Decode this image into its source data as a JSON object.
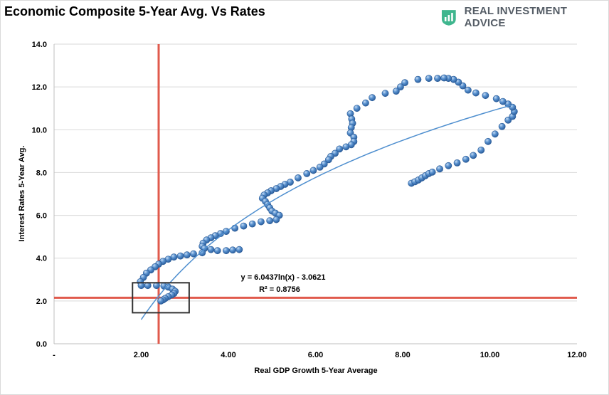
{
  "header": {
    "title": "Economic Composite 5-Year Avg. Vs Rates",
    "brand_name": "REAL INVESTMENT ADVICE",
    "brand_icon": "bar-chart-shield-icon",
    "brand_color": "#3fb68e"
  },
  "chart_data": {
    "type": "scatter",
    "xlabel": "Real GDP Growth 5-Year Average",
    "ylabel": "Interest Rates 5-Year Avg.",
    "xlim": [
      0,
      12
    ],
    "ylim": [
      0,
      14
    ],
    "x_tick_labels": [
      "-",
      "2.00",
      "4.00",
      "6.00",
      "8.00",
      "10.00",
      "12.00"
    ],
    "y_tick_labels": [
      "0.0",
      "2.0",
      "4.0",
      "6.0",
      "8.0",
      "10.0",
      "12.0",
      "14.0"
    ],
    "grid": "horizontal",
    "marker_color": "#4a86c8",
    "trendline": {
      "equation": "y = 6.0437ln(x) - 3.0621",
      "r_squared": "R² = 0.8756",
      "a": 6.0437,
      "b": -3.0621,
      "x_range": [
        2.0,
        10.5
      ],
      "color": "#4f8fcf"
    },
    "reference_lines": {
      "x": 2.4,
      "y": 2.15,
      "color": "#e05a4c"
    },
    "highlight_box": {
      "x_range": [
        1.8,
        3.1
      ],
      "y_range": [
        1.45,
        2.85
      ]
    },
    "series": [
      {
        "points": [
          [
            8.2,
            7.5
          ],
          [
            8.28,
            7.57
          ],
          [
            8.36,
            7.65
          ],
          [
            8.44,
            7.75
          ],
          [
            8.52,
            7.85
          ],
          [
            8.6,
            7.95
          ],
          [
            8.68,
            8.02
          ],
          [
            8.85,
            8.17
          ],
          [
            9.05,
            8.32
          ],
          [
            9.25,
            8.45
          ],
          [
            9.45,
            8.62
          ],
          [
            9.62,
            8.8
          ],
          [
            9.8,
            9.05
          ],
          [
            9.96,
            9.45
          ],
          [
            10.12,
            9.8
          ],
          [
            10.28,
            10.15
          ],
          [
            10.42,
            10.45
          ],
          [
            10.52,
            10.62
          ],
          [
            10.56,
            10.85
          ],
          [
            10.52,
            11.05
          ],
          [
            10.42,
            11.2
          ],
          [
            10.3,
            11.32
          ],
          [
            10.15,
            11.45
          ],
          [
            9.9,
            11.6
          ],
          [
            9.68,
            11.72
          ],
          [
            9.5,
            11.85
          ],
          [
            9.38,
            12.05
          ],
          [
            9.28,
            12.22
          ],
          [
            9.17,
            12.35
          ],
          [
            9.05,
            12.4
          ],
          [
            8.95,
            12.42
          ],
          [
            8.8,
            12.4
          ],
          [
            8.6,
            12.4
          ],
          [
            8.35,
            12.35
          ],
          [
            8.05,
            12.2
          ],
          [
            7.95,
            12.0
          ],
          [
            7.85,
            11.8
          ],
          [
            7.6,
            11.7
          ],
          [
            7.3,
            11.5
          ],
          [
            7.15,
            11.25
          ],
          [
            6.95,
            11.0
          ],
          [
            6.8,
            10.75
          ],
          [
            6.83,
            10.5
          ],
          [
            6.85,
            10.3
          ],
          [
            6.82,
            10.1
          ],
          [
            6.8,
            9.85
          ],
          [
            6.88,
            9.65
          ],
          [
            6.88,
            9.45
          ],
          [
            6.82,
            9.3
          ],
          [
            6.7,
            9.2
          ],
          [
            6.55,
            9.1
          ],
          [
            6.45,
            8.9
          ],
          [
            6.35,
            8.75
          ],
          [
            6.3,
            8.6
          ],
          [
            6.2,
            8.4
          ],
          [
            6.1,
            8.25
          ],
          [
            5.95,
            8.1
          ],
          [
            5.8,
            7.95
          ],
          [
            5.6,
            7.75
          ],
          [
            5.42,
            7.55
          ],
          [
            5.3,
            7.45
          ],
          [
            5.2,
            7.35
          ],
          [
            5.1,
            7.25
          ],
          [
            4.98,
            7.15
          ],
          [
            4.9,
            7.05
          ],
          [
            4.82,
            6.95
          ],
          [
            4.78,
            6.8
          ],
          [
            4.85,
            6.65
          ],
          [
            4.9,
            6.5
          ],
          [
            4.95,
            6.35
          ],
          [
            5.0,
            6.2
          ],
          [
            5.08,
            6.1
          ],
          [
            5.17,
            6.0
          ],
          [
            5.1,
            5.8
          ],
          [
            4.95,
            5.75
          ],
          [
            4.75,
            5.7
          ],
          [
            4.55,
            5.6
          ],
          [
            4.35,
            5.5
          ],
          [
            4.15,
            5.4
          ],
          [
            3.95,
            5.25
          ],
          [
            3.82,
            5.15
          ],
          [
            3.7,
            5.05
          ],
          [
            3.6,
            4.95
          ],
          [
            3.5,
            4.85
          ],
          [
            3.42,
            4.7
          ],
          [
            3.4,
            4.55
          ],
          [
            3.45,
            4.45
          ],
          [
            3.6,
            4.4
          ],
          [
            3.75,
            4.35
          ],
          [
            3.95,
            4.35
          ],
          [
            4.1,
            4.38
          ],
          [
            4.25,
            4.4
          ],
          [
            3.4,
            4.25
          ],
          [
            3.2,
            4.2
          ],
          [
            3.05,
            4.15
          ],
          [
            2.9,
            4.1
          ],
          [
            2.75,
            4.05
          ],
          [
            2.62,
            3.95
          ],
          [
            2.5,
            3.85
          ],
          [
            2.4,
            3.72
          ],
          [
            2.32,
            3.6
          ],
          [
            2.22,
            3.45
          ],
          [
            2.12,
            3.3
          ],
          [
            2.05,
            3.1
          ],
          [
            1.98,
            2.9
          ],
          [
            2.0,
            2.72
          ],
          [
            2.15,
            2.72
          ],
          [
            2.35,
            2.72
          ],
          [
            2.52,
            2.7
          ],
          [
            2.62,
            2.65
          ],
          [
            2.72,
            2.55
          ],
          [
            2.78,
            2.45
          ],
          [
            2.75,
            2.35
          ],
          [
            2.7,
            2.28
          ],
          [
            2.62,
            2.2
          ],
          [
            2.55,
            2.12
          ],
          [
            2.5,
            2.05
          ],
          [
            2.45,
            2.0
          ]
        ]
      }
    ]
  }
}
